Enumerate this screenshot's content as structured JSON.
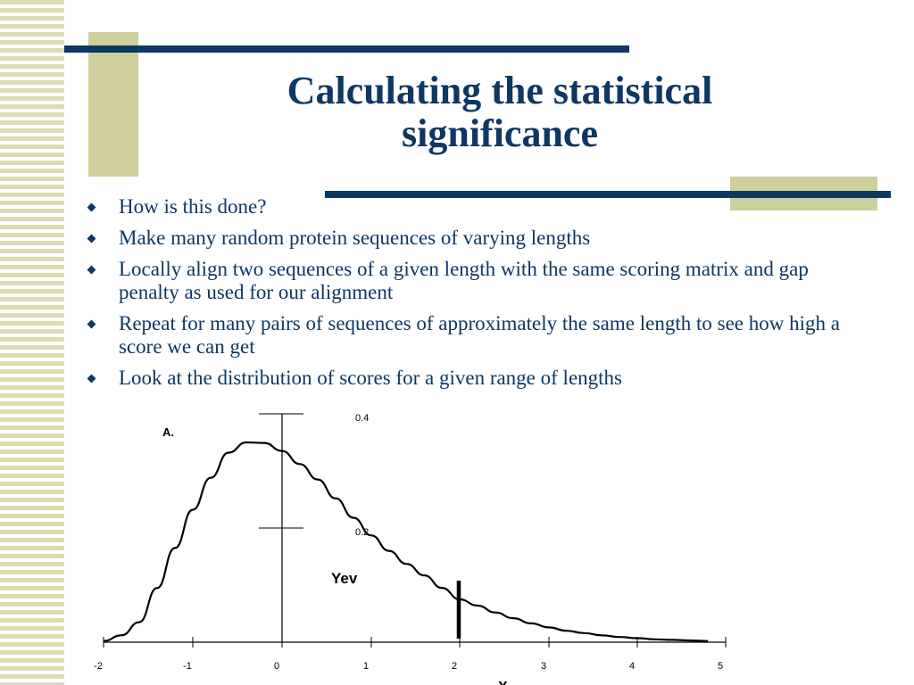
{
  "slide": {
    "title": "Calculating the statistical significance",
    "bullets": [
      "How is this done?",
      "Make many random protein sequences of varying lengths",
      "Locally align two sequences of a given length with the same scoring matrix and gap penalty as used for our alignment",
      "Repeat for many pairs of sequences of approximately the same length to see how high a score we can get",
      "Look at the distribution of scores for a given range of lengths"
    ]
  },
  "colors": {
    "accent": "#0e3763",
    "decor": "#cfcf9e",
    "stripe": "#dcdcb4"
  },
  "chart_data": {
    "type": "line",
    "title": "",
    "panel_label": "A.",
    "curve_label": "Yev",
    "xlabel": "X",
    "ylabel": "",
    "xlim": [
      -2,
      5
    ],
    "ylim": [
      0,
      0.4
    ],
    "x_ticks": [
      -2,
      -1,
      0,
      1,
      2,
      3,
      4,
      5
    ],
    "y_ticks": [
      {
        "value": 0.2,
        "label": "0.2"
      },
      {
        "value": 0.4,
        "label": "0.4"
      }
    ],
    "marker_x": 2,
    "series": [
      {
        "name": "",
        "x": [
          -2,
          -1.8,
          -1.6,
          -1.4,
          -1.2,
          -1.0,
          -0.8,
          -0.6,
          -0.4,
          -0.2,
          0,
          0.2,
          0.4,
          0.6,
          0.8,
          1.0,
          1.2,
          1.4,
          1.6,
          1.8,
          2.0,
          2.2,
          2.4,
          2.6,
          2.8,
          3.0,
          3.2,
          3.4,
          3.6,
          3.8,
          4.0,
          4.2,
          4.4,
          4.6,
          4.8
        ],
        "y": [
          0.002,
          0.012,
          0.035,
          0.095,
          0.165,
          0.232,
          0.288,
          0.332,
          0.35,
          0.349,
          0.335,
          0.312,
          0.285,
          0.252,
          0.218,
          0.187,
          0.16,
          0.137,
          0.117,
          0.095,
          0.075,
          0.064,
          0.052,
          0.042,
          0.033,
          0.026,
          0.02,
          0.016,
          0.012,
          0.009,
          0.007,
          0.005,
          0.004,
          0.003,
          0.002
        ]
      }
    ]
  }
}
